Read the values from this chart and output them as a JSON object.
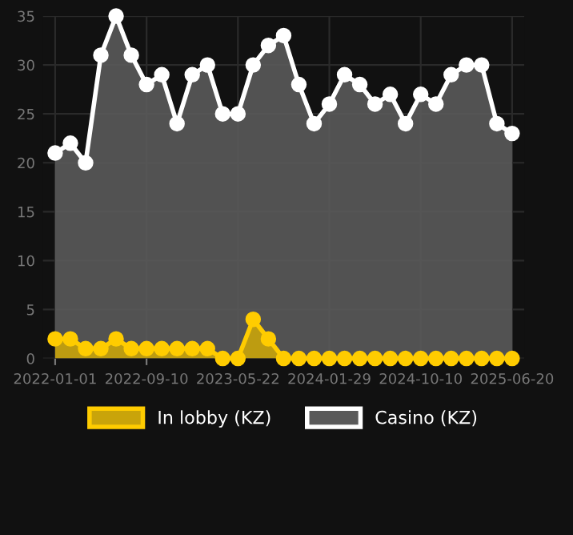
{
  "chart_data": {
    "type": "area",
    "categories": [
      "2022-01-01",
      null,
      null,
      null,
      null,
      null,
      "2022-09-10",
      null,
      null,
      null,
      null,
      null,
      "2023-05-22",
      null,
      null,
      null,
      null,
      null,
      "2024-01-29",
      null,
      null,
      null,
      null,
      null,
      "2024-10-10",
      null,
      null,
      null,
      null,
      null,
      "2025-06-20"
    ],
    "series": [
      {
        "name": "In lobby (KZ)",
        "color": "#ffcc00",
        "values": [
          2,
          2,
          1,
          1,
          2,
          1,
          1,
          1,
          1,
          1,
          1,
          0,
          0,
          4,
          2,
          0,
          0,
          0,
          0,
          0,
          0,
          0,
          0,
          0,
          0,
          0,
          0,
          0,
          0,
          0,
          0
        ]
      },
      {
        "name": "Casino (KZ)",
        "color": "#ffffff",
        "values": [
          21,
          22,
          20,
          31,
          35,
          31,
          28,
          29,
          24,
          29,
          30,
          25,
          25,
          30,
          32,
          33,
          28,
          24,
          26,
          29,
          28,
          26,
          27,
          24,
          27,
          26,
          29,
          30,
          30,
          24,
          23
        ]
      }
    ],
    "ylim": [
      0,
      35
    ],
    "yticks": [
      0,
      5,
      10,
      15,
      20,
      25,
      30,
      35
    ],
    "grid": true,
    "legend": "bottom",
    "marker": "circle",
    "line_style": "solid"
  }
}
